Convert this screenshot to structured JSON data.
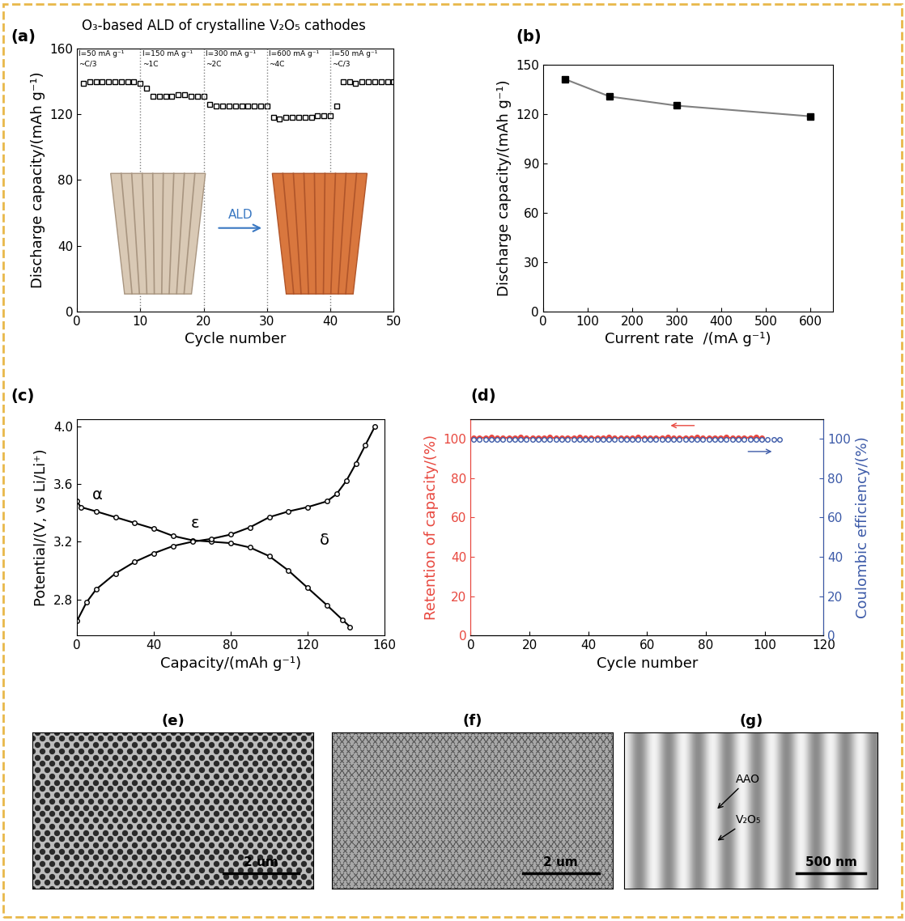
{
  "title": "O₃-based ALD of crystalline V₂O₅ cathodes",
  "chart_data": [
    {
      "type": "scatter",
      "panel": "(a)",
      "xlabel": "Cycle number",
      "ylabel": "Discharge capacity/(mAh g⁻¹)",
      "x": [
        1,
        2,
        3,
        4,
        5,
        6,
        7,
        8,
        9,
        10,
        11,
        12,
        13,
        14,
        15,
        16,
        17,
        18,
        19,
        20,
        21,
        22,
        23,
        24,
        25,
        26,
        27,
        28,
        29,
        30,
        31,
        32,
        33,
        34,
        35,
        36,
        37,
        38,
        39,
        40,
        41,
        42,
        43,
        44,
        45,
        46,
        47,
        48,
        49,
        50
      ],
      "values": [
        139,
        140,
        140,
        140,
        140,
        140,
        140,
        140,
        140,
        139,
        136,
        131,
        131,
        131,
        131,
        132,
        132,
        131,
        131,
        131,
        126,
        125,
        125,
        125,
        125,
        125,
        125,
        125,
        125,
        125,
        118,
        117,
        118,
        118,
        118,
        118,
        118,
        119,
        119,
        119,
        125,
        140,
        140,
        139,
        140,
        140,
        140,
        140,
        140,
        140
      ],
      "marker": "square",
      "line_style": "none",
      "color": "#000000",
      "xlim": [
        0,
        50
      ],
      "xticks": [
        0,
        10,
        20,
        30,
        40,
        50
      ],
      "ylim": [
        0,
        160
      ],
      "yticks": [
        0,
        40,
        80,
        120,
        160
      ],
      "dividers": [
        10,
        20,
        30,
        40
      ],
      "current_labels": [
        "I=50 mA g⁻¹",
        "I=150 mA g⁻¹",
        "I=300 mA g⁻¹",
        "I=600 mA g⁻¹",
        "I=50 mA g⁻¹"
      ],
      "rate_labels": [
        "~C/3",
        "~1C",
        "~2C",
        "~4C",
        "~C/3"
      ],
      "inset_label": "ALD"
    },
    {
      "type": "line",
      "panel": "(b)",
      "xlabel": "Current rate  /(mA g⁻¹)",
      "ylabel": "Discharge capacity/(mAh g⁻¹)",
      "x": [
        50,
        150,
        300,
        600
      ],
      "values": [
        141,
        130.5,
        125,
        118.5
      ],
      "marker": "square",
      "line_style": "solid",
      "color": "#000000",
      "xlim": [
        0,
        650
      ],
      "xticks": [
        0,
        100,
        200,
        300,
        400,
        500,
        600
      ],
      "ylim": [
        0,
        150
      ],
      "yticks": [
        0,
        30,
        60,
        90,
        120,
        150
      ]
    },
    {
      "type": "line",
      "panel": "(c)",
      "xlabel": "Capacity/(mAh g⁻¹)",
      "ylabel": "Potential/(V, vs Li/Li⁺)",
      "series": [
        {
          "color": "#000000",
          "marker": "circle",
          "line_style": "solid",
          "x": [
            0,
            2,
            10,
            20,
            30,
            40,
            50,
            60,
            70,
            80,
            90,
            100,
            110,
            120,
            130,
            138,
            142
          ],
          "values": [
            3.48,
            3.44,
            3.41,
            3.37,
            3.33,
            3.29,
            3.24,
            3.21,
            3.2,
            3.19,
            3.16,
            3.1,
            3.0,
            2.88,
            2.76,
            2.66,
            2.61
          ]
        },
        {
          "color": "#000000",
          "marker": "circle",
          "line_style": "solid",
          "x": [
            0,
            5,
            10,
            20,
            30,
            40,
            50,
            60,
            70,
            80,
            90,
            100,
            110,
            120,
            130,
            135,
            140,
            145,
            150,
            155
          ],
          "values": [
            2.65,
            2.78,
            2.87,
            2.98,
            3.06,
            3.12,
            3.17,
            3.2,
            3.22,
            3.25,
            3.3,
            3.37,
            3.41,
            3.44,
            3.48,
            3.53,
            3.62,
            3.74,
            3.87,
            4.0
          ]
        }
      ],
      "annotations": [
        "α",
        "ε",
        "δ"
      ],
      "xlim": [
        0,
        160
      ],
      "xticks": [
        0,
        40,
        80,
        120,
        160
      ],
      "ylim": [
        2.55,
        4.05
      ],
      "yticks": [
        2.8,
        3.2,
        3.6,
        4.0
      ]
    },
    {
      "type": "line",
      "panel": "(d)",
      "xlabel": "Cycle number",
      "ylabel": "Retention of capacity/(%)",
      "y2label": "Coulombic efficiency/(%)",
      "series": [
        {
          "color": "#e8483f",
          "marker": "circle",
          "line_style": "solid",
          "x": [
            1,
            3,
            5,
            7,
            9,
            11,
            13,
            15,
            17,
            19,
            21,
            23,
            25,
            27,
            29,
            31,
            33,
            35,
            37,
            39,
            41,
            43,
            45,
            47,
            49,
            51,
            53,
            55,
            57,
            59,
            61,
            63,
            65,
            67,
            69,
            71,
            73,
            75,
            77,
            79,
            81,
            83,
            85,
            87,
            89,
            91,
            93,
            95,
            97,
            99
          ],
          "values": [
            100.4,
            100.6,
            100.5,
            100.7,
            100.3,
            100.4,
            100.6,
            100.5,
            100.7,
            100.3,
            100.4,
            100.6,
            100.5,
            100.7,
            100.3,
            100.4,
            100.6,
            100.5,
            100.7,
            100.3,
            100.4,
            100.6,
            100.5,
            100.7,
            100.3,
            100.4,
            100.6,
            100.5,
            100.7,
            100.3,
            100.4,
            100.6,
            100.5,
            100.7,
            100.3,
            100.4,
            100.6,
            100.5,
            100.7,
            100.3,
            100.4,
            100.6,
            100.5,
            100.7,
            100.3,
            100.4,
            100.6,
            100.5,
            100.7,
            100.3
          ]
        },
        {
          "color": "#3c5aa8",
          "marker": "circle",
          "line_style": "none",
          "axis": "y2",
          "x": [
            1,
            3,
            5,
            7,
            9,
            11,
            13,
            15,
            17,
            19,
            21,
            23,
            25,
            27,
            29,
            31,
            33,
            35,
            37,
            39,
            41,
            43,
            45,
            47,
            49,
            51,
            53,
            55,
            57,
            59,
            61,
            63,
            65,
            67,
            69,
            71,
            73,
            75,
            77,
            79,
            81,
            83,
            85,
            87,
            89,
            91,
            93,
            95,
            97,
            99,
            101,
            103,
            105
          ],
          "values": [
            99.6,
            99.8,
            99.5,
            99.7,
            99.6,
            99.8,
            99.5,
            99.7,
            99.6,
            99.8,
            99.5,
            99.7,
            99.6,
            99.8,
            99.5,
            99.7,
            99.6,
            99.8,
            99.5,
            99.7,
            99.6,
            99.8,
            99.5,
            99.7,
            99.6,
            99.8,
            99.5,
            99.7,
            99.6,
            99.8,
            99.5,
            99.7,
            99.6,
            99.8,
            99.5,
            99.7,
            99.6,
            99.8,
            99.5,
            99.7,
            99.6,
            99.8,
            99.5,
            99.7,
            99.6,
            99.8,
            99.5,
            99.7,
            99.6,
            99.8,
            99.5,
            99.7,
            99.6
          ]
        }
      ],
      "xlim": [
        0,
        120
      ],
      "xticks": [
        0,
        20,
        40,
        60,
        80,
        100,
        120
      ],
      "ylim": [
        0,
        110
      ],
      "yticks": [
        0,
        20,
        40,
        60,
        80,
        100
      ],
      "y2lim": [
        0,
        110
      ],
      "y2ticks": [
        0,
        20,
        40,
        60,
        80,
        100
      ]
    },
    {
      "type": "image",
      "panel": "(e)",
      "scale_bar": "2 um"
    },
    {
      "type": "image",
      "panel": "(f)",
      "scale_bar": "2 um"
    },
    {
      "type": "image",
      "panel": "(g)",
      "scale_bar": "500 nm",
      "annotations": [
        "AAO",
        "V₂O₅"
      ]
    }
  ]
}
